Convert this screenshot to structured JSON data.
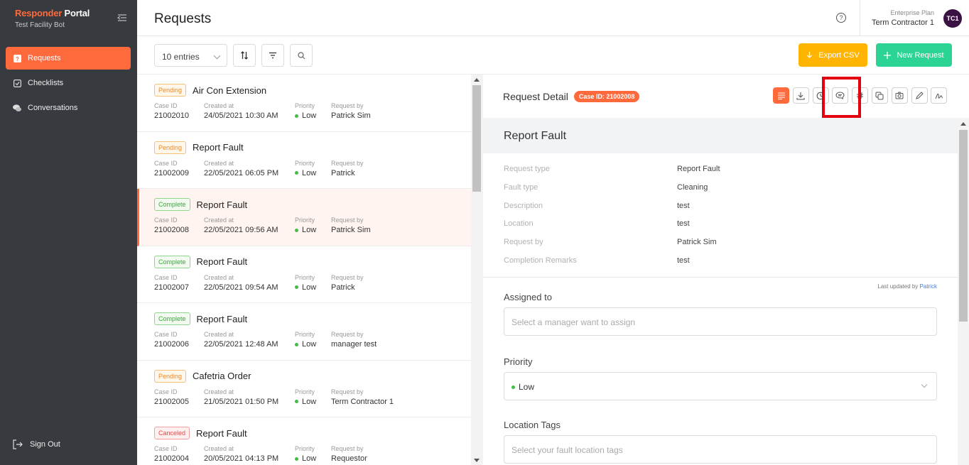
{
  "sidebar": {
    "brand_a": "Responder",
    "brand_b": "Portal",
    "subtitle": "Test Facility Bot",
    "items": [
      {
        "label": "Requests",
        "icon": "question-square-icon",
        "active": true
      },
      {
        "label": "Checklists",
        "icon": "checkbox-icon",
        "active": false
      },
      {
        "label": "Conversations",
        "icon": "chat-bubbles-icon",
        "active": false
      }
    ],
    "signout": "Sign Out"
  },
  "header": {
    "title": "Requests",
    "plan": "Enterprise Plan",
    "user": "Term Contractor 1",
    "avatar": "TC1"
  },
  "toolbar": {
    "entries": "10 entries",
    "export_label": "Export CSV",
    "new_label": "New Request"
  },
  "colors": {
    "accent": "#ff6a3d",
    "export": "#ffb400",
    "new": "#2bd494",
    "sidebar": "#373a3f"
  },
  "labels": {
    "case_id": "Case ID",
    "created_at": "Created at",
    "priority": "Priority",
    "request_by": "Request by"
  },
  "requests": [
    {
      "status": "Pending",
      "title": "Air Con Extension",
      "case_id": "21002010",
      "created": "24/05/2021 10:30 AM",
      "priority": "Low",
      "by": "Patrick Sim"
    },
    {
      "status": "Pending",
      "title": "Report Fault",
      "case_id": "21002009",
      "created": "22/05/2021 06:05 PM",
      "priority": "Low",
      "by": "Patrick"
    },
    {
      "status": "Complete",
      "title": "Report Fault",
      "case_id": "21002008",
      "created": "22/05/2021 09:56 AM",
      "priority": "Low",
      "by": "Patrick Sim"
    },
    {
      "status": "Complete",
      "title": "Report Fault",
      "case_id": "21002007",
      "created": "22/05/2021 09:54 AM",
      "priority": "Low",
      "by": "Patrick"
    },
    {
      "status": "Complete",
      "title": "Report Fault",
      "case_id": "21002006",
      "created": "22/05/2021 12:48 AM",
      "priority": "Low",
      "by": "manager test"
    },
    {
      "status": "Pending",
      "title": "Cafetria Order",
      "case_id": "21002005",
      "created": "21/05/2021 01:50 PM",
      "priority": "Low",
      "by": "Term Contractor 1"
    },
    {
      "status": "Canceled",
      "title": "Report Fault",
      "case_id": "21002004",
      "created": "20/05/2021 04:13 PM",
      "priority": "Low",
      "by": "Requestor"
    }
  ],
  "detail": {
    "heading": "Request Detail",
    "case_badge": "Case ID: 21002008",
    "type_title": "Report Fault",
    "fields": [
      {
        "k": "Request type",
        "v": "Report Fault"
      },
      {
        "k": "Fault type",
        "v": "Cleaning"
      },
      {
        "k": "Description",
        "v": "test"
      },
      {
        "k": "Location",
        "v": "test"
      },
      {
        "k": "Request by",
        "v": "Patrick Sim"
      },
      {
        "k": "Completion Remarks",
        "v": "test"
      }
    ],
    "last_updated_prefix": "Last updated by",
    "last_updated_by": "Patrick",
    "assigned_label": "Assigned to",
    "assigned_placeholder": "Select a manager want to assign",
    "priority_label": "Priority",
    "priority_value": "Low",
    "tags_label": "Location Tags",
    "tags_placeholder": "Select your fault location tags"
  }
}
